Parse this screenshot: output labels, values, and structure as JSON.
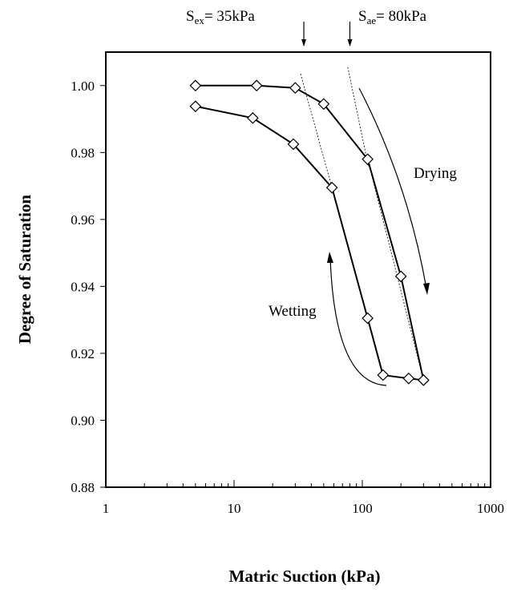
{
  "chart_data": {
    "type": "scatter",
    "title": "",
    "xlabel": "Matric Suction (kPa)",
    "ylabel": "Degree of Saturation",
    "xscale": "log",
    "xlim": [
      1,
      1000
    ],
    "ylim": [
      0.88,
      1.01
    ],
    "x_ticks": [
      1,
      10,
      100,
      1000
    ],
    "x_tick_labels": [
      "1",
      "10",
      "100",
      "1000"
    ],
    "y_ticks": [
      0.88,
      0.9,
      0.92,
      0.94,
      0.96,
      0.98,
      1.0
    ],
    "y_tick_labels": [
      "0.88",
      "0.90",
      "0.92",
      "0.94",
      "0.96",
      "0.98",
      "1.00"
    ],
    "grid": false,
    "series": [
      {
        "name": "",
        "marker": "diamond-open",
        "x": [
          5,
          15,
          30,
          50,
          110,
          200,
          300
        ],
        "y": [
          1.0,
          1.0,
          0.9993,
          0.9945,
          0.978,
          0.943,
          0.912
        ]
      },
      {
        "name": "",
        "marker": "diamond-open",
        "x": [
          5,
          14,
          29,
          58,
          110,
          145,
          230,
          300
        ],
        "y": [
          0.9938,
          0.9903,
          0.9825,
          0.9695,
          0.9305,
          0.9135,
          0.9125,
          0.912
        ]
      }
    ],
    "tangent_lines": [
      {
        "x": [
          33,
          58
        ],
        "y": [
          1.0035,
          0.9695
        ]
      },
      {
        "x": [
          77,
          112
        ],
        "y": [
          1.0055,
          0.9755
        ]
      },
      {
        "x": [
          110,
          300
        ],
        "y": [
          0.978,
          0.912
        ]
      }
    ],
    "markers": [
      {
        "sub": "ex",
        "text": "= 35kPa",
        "x": 35
      },
      {
        "sub": "ae",
        "text": "= 80kPa",
        "x": 80
      }
    ],
    "annotations": {
      "drying": {
        "label": "Drying"
      },
      "wetting": {
        "label": "Wetting"
      }
    }
  }
}
